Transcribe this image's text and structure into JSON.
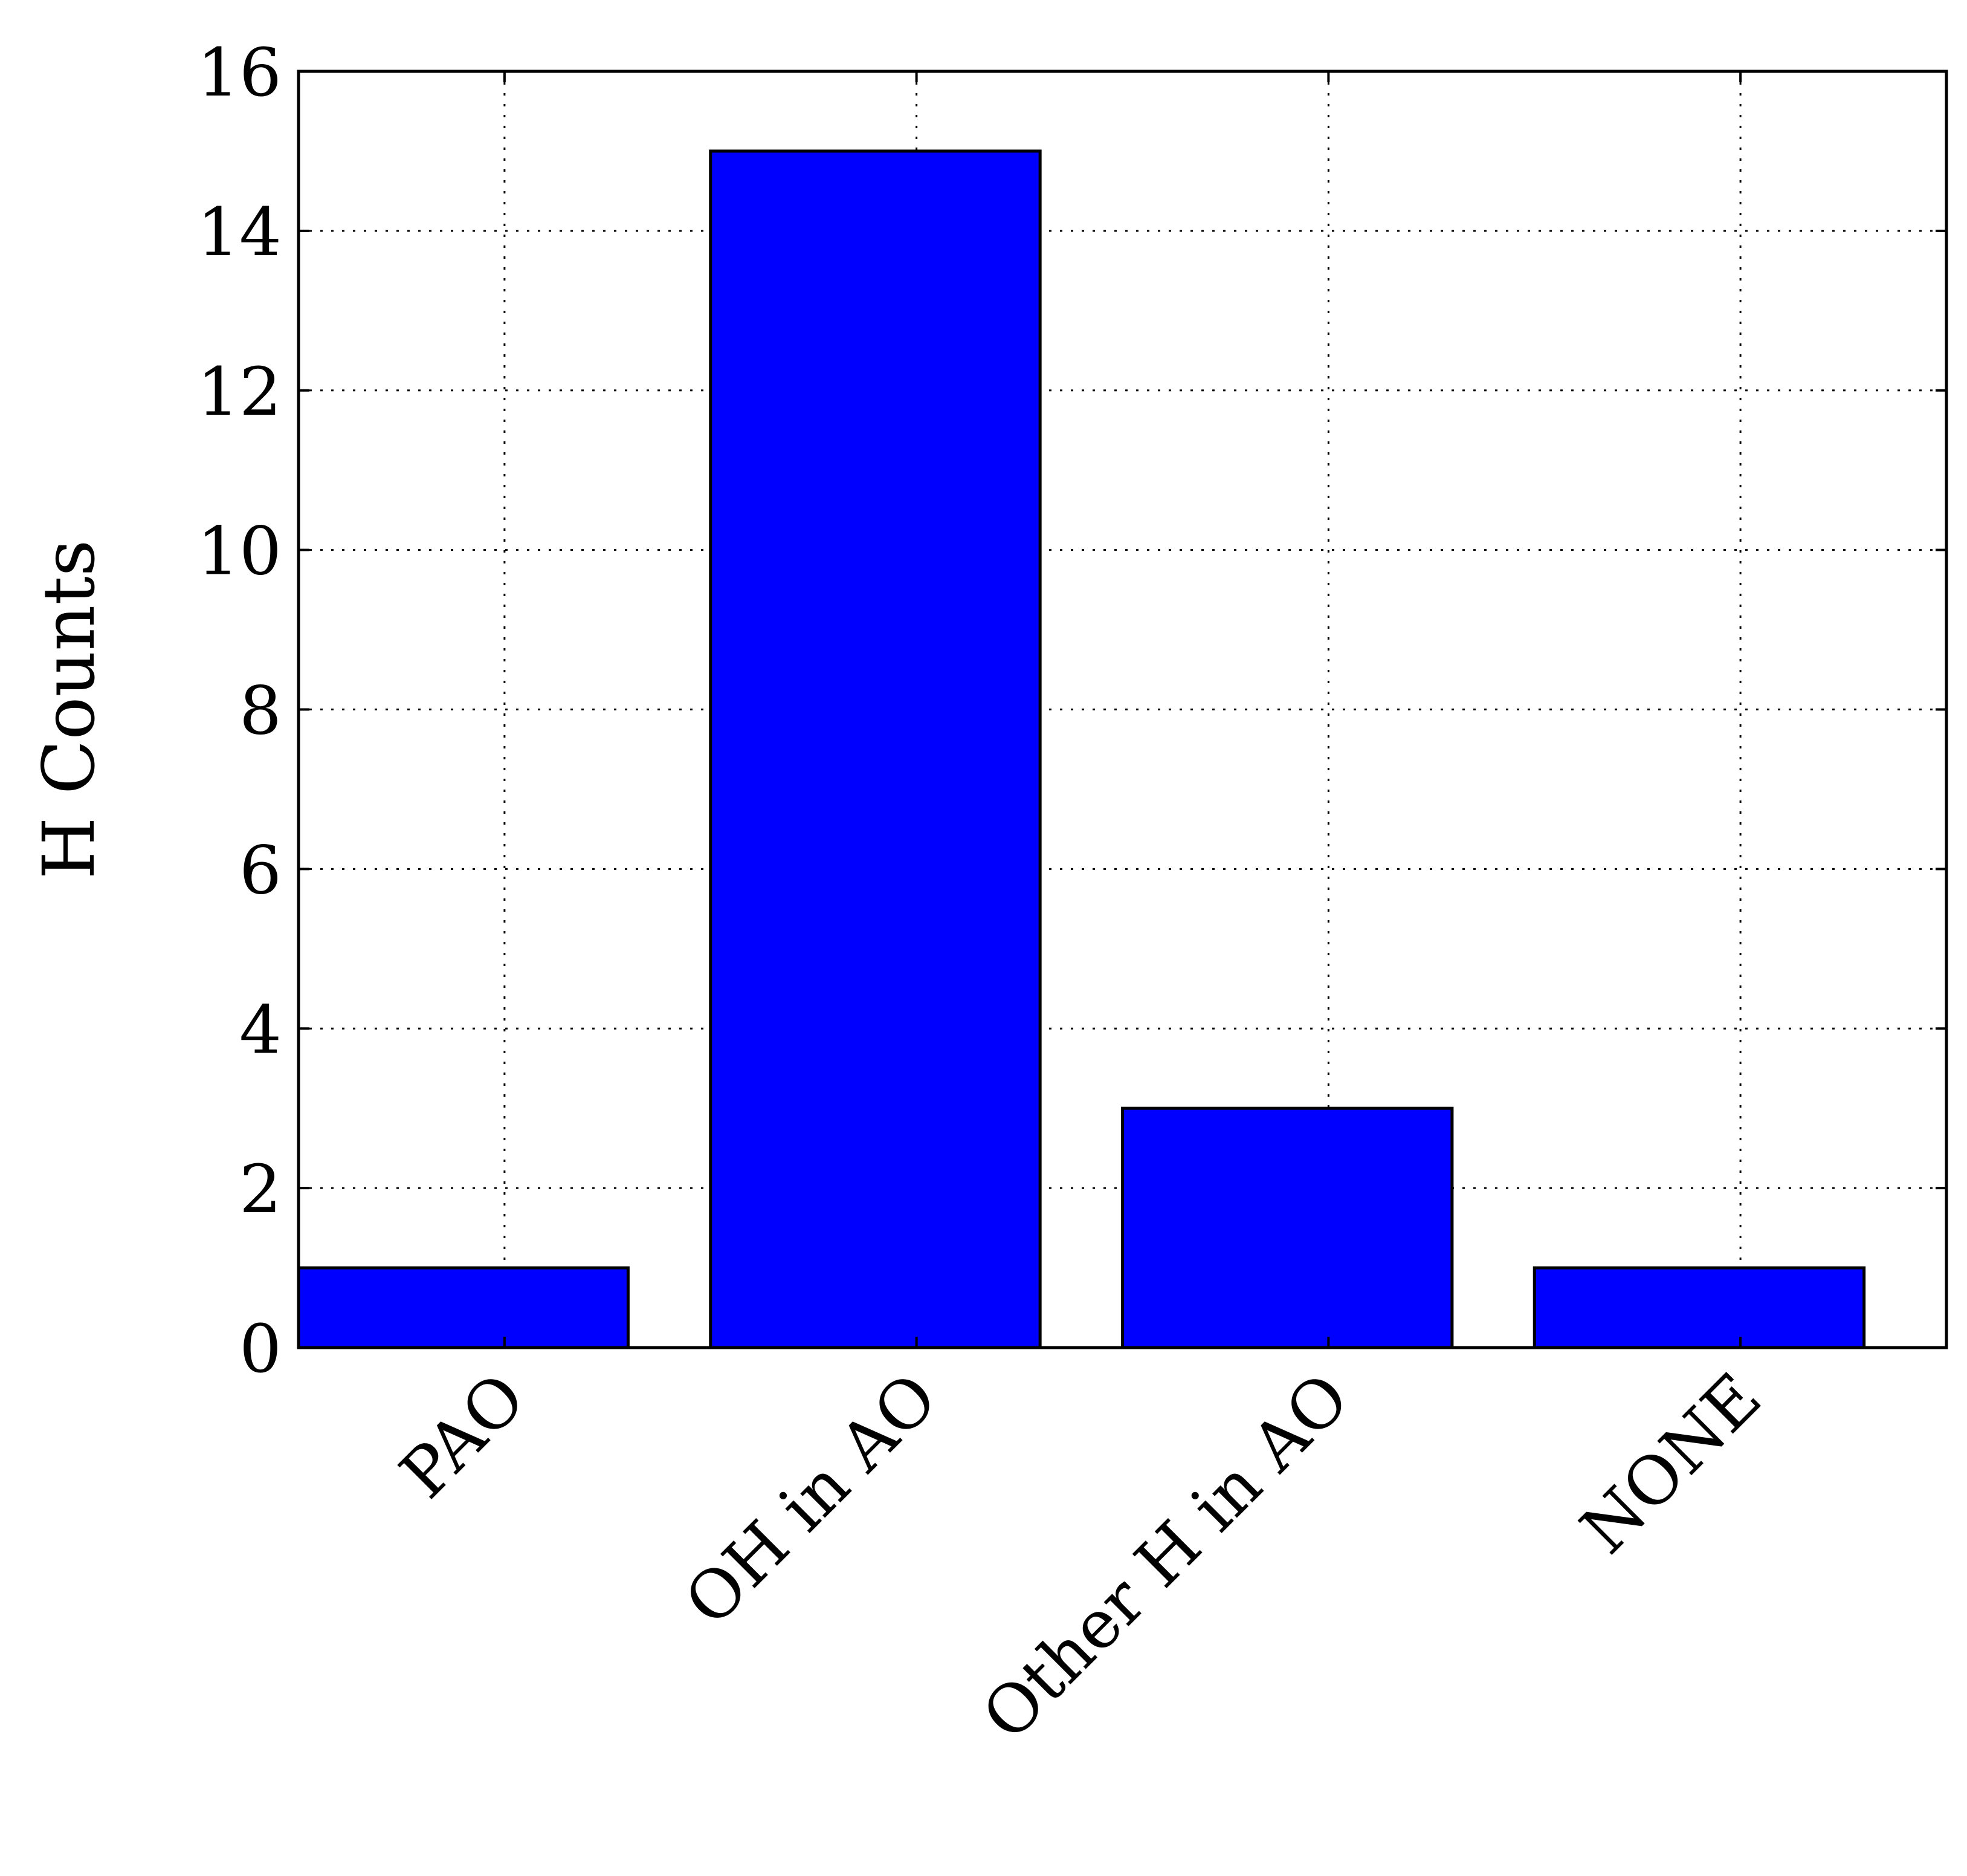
{
  "chart_data": {
    "type": "bar",
    "title": "",
    "xlabel": "",
    "ylabel": "H Counts",
    "categories": [
      "PAO",
      "OH in AO",
      "Other H in AO",
      "NONE"
    ],
    "values": [
      1,
      15,
      3,
      1
    ],
    "ylim": [
      0,
      16
    ],
    "yticks": [
      "0",
      "2",
      "4",
      "6",
      "8",
      "10",
      "12",
      "14",
      "16"
    ],
    "grid": true,
    "bar_color": "#0000ff",
    "edge_color": "#000000"
  }
}
